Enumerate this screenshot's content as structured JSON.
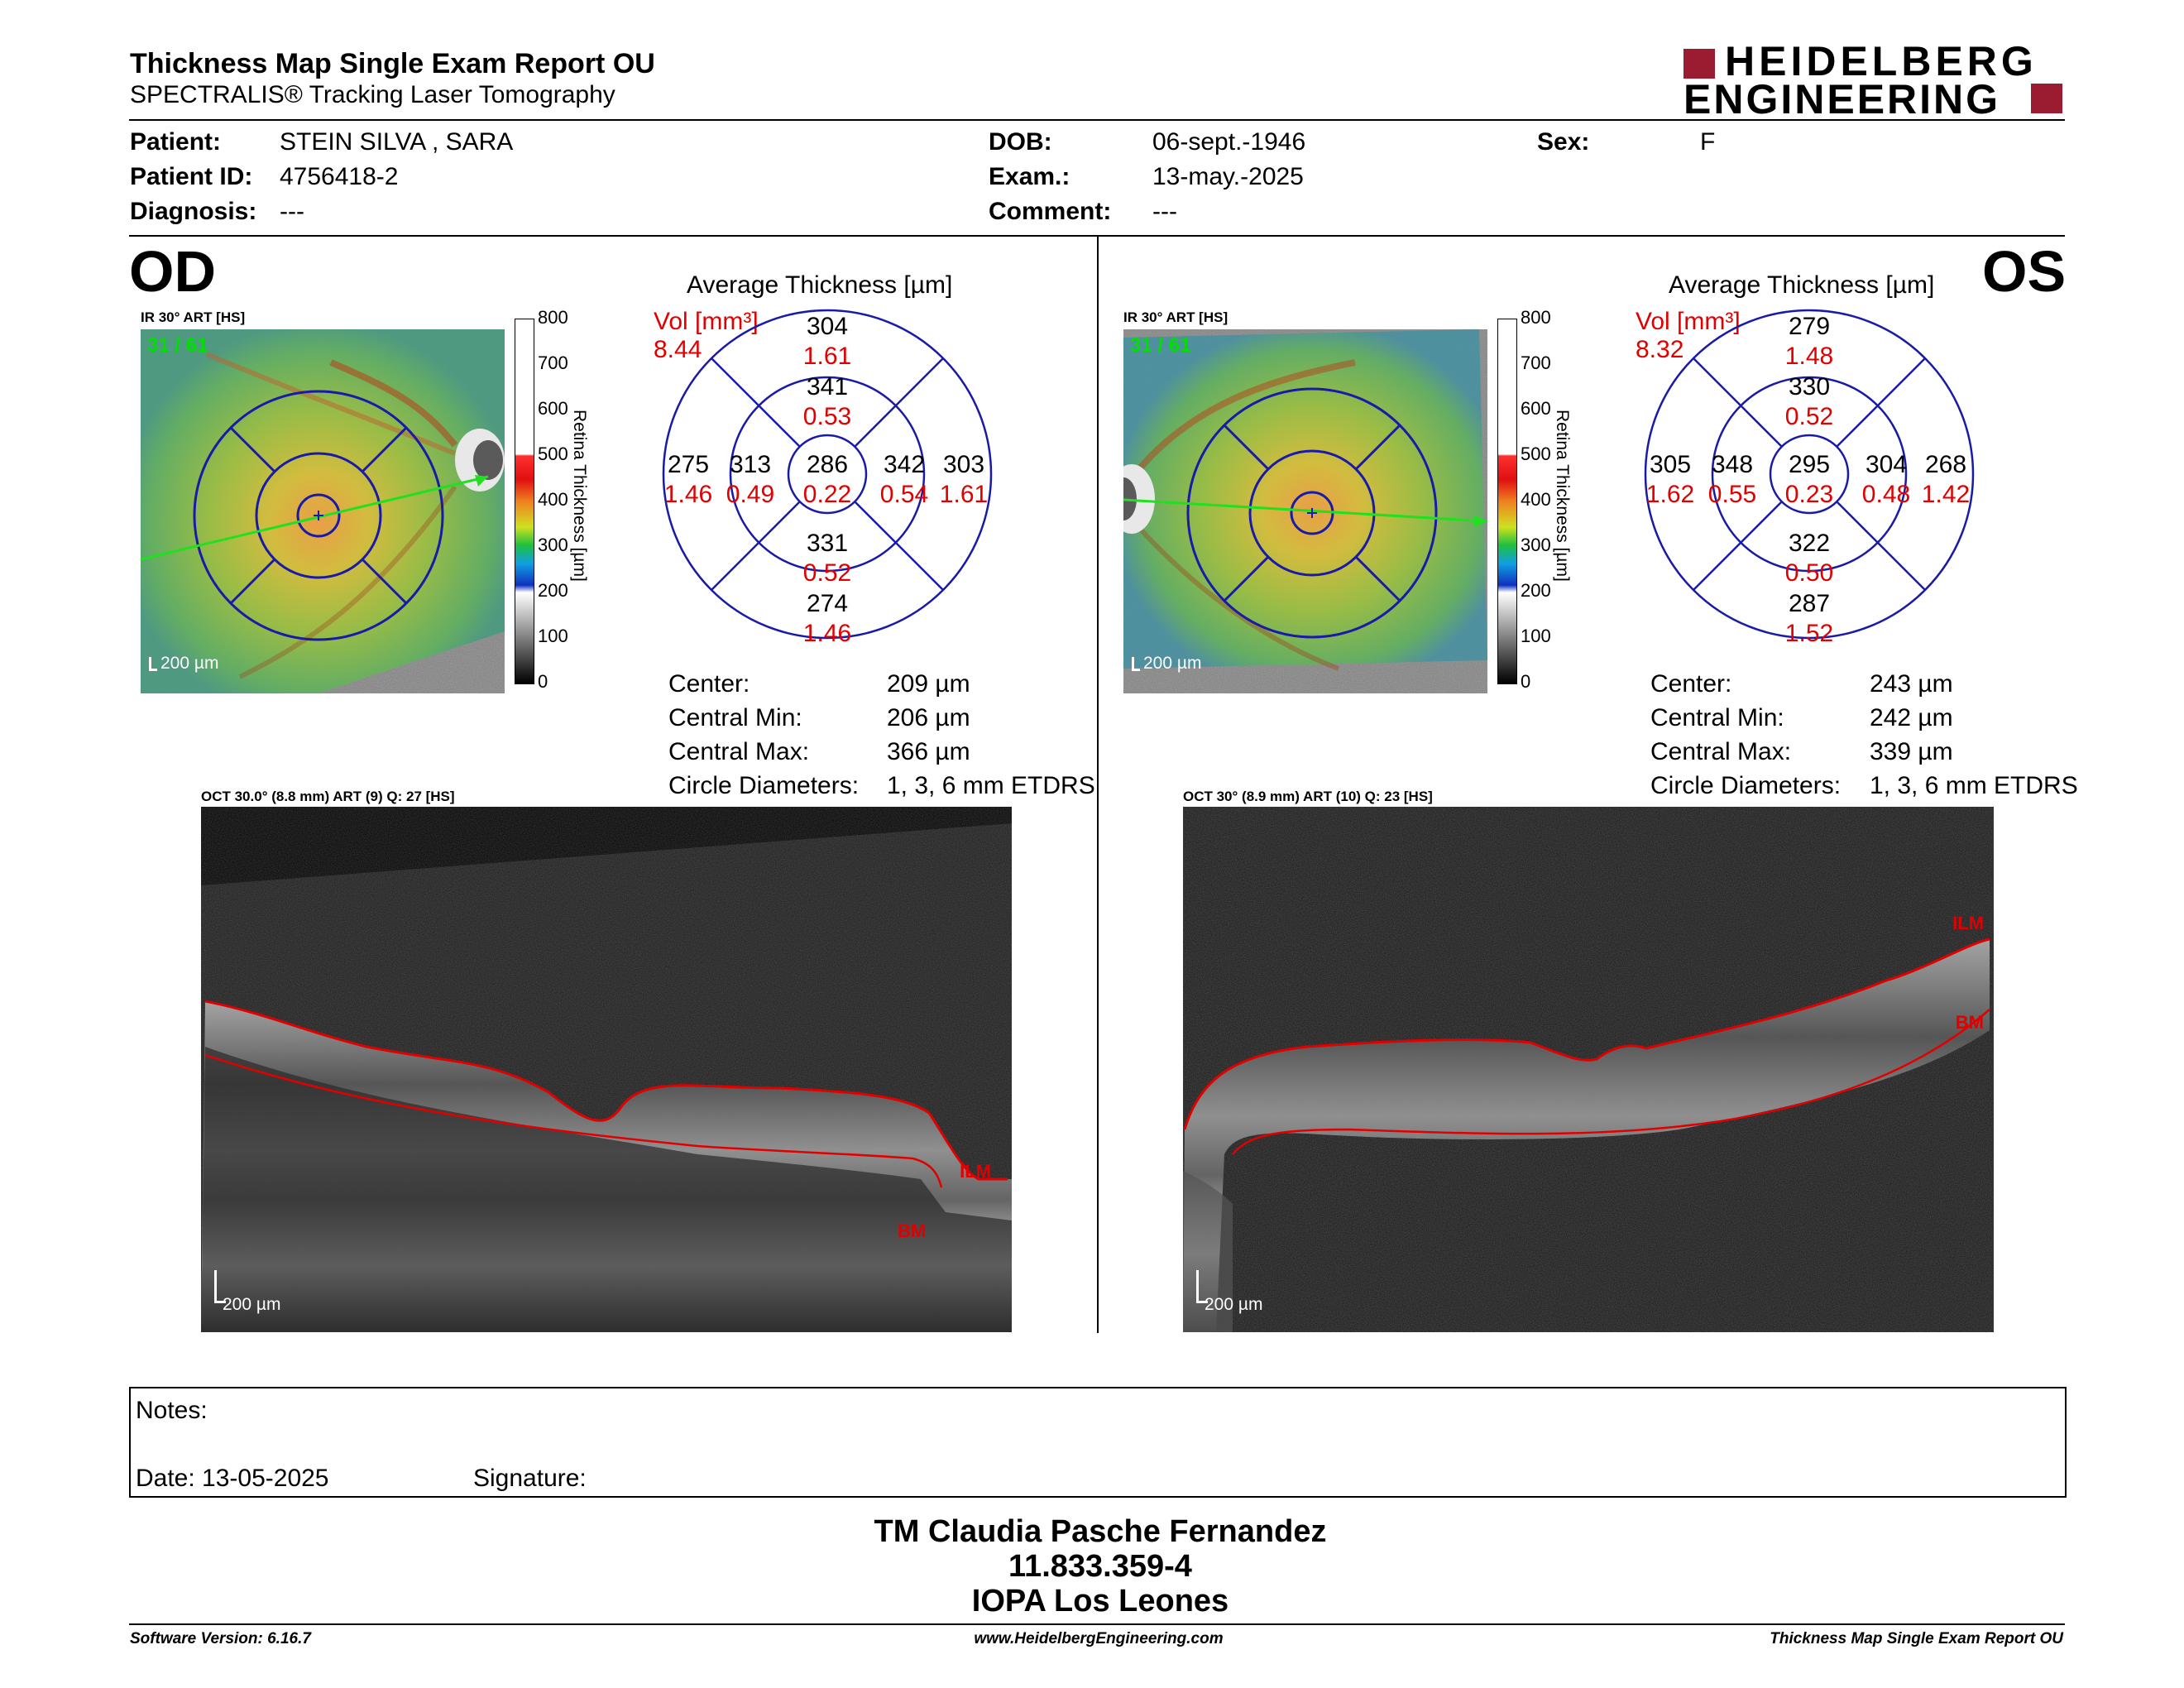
{
  "header": {
    "title": "Thickness Map Single Exam Report OU",
    "subtitle": "SPECTRALIS® Tracking Laser Tomography",
    "logo_line1": "HEIDELBERG",
    "logo_line2": "ENGINEERING"
  },
  "patient": {
    "patient_label": "Patient:",
    "patient_value": "STEIN SILVA , SARA",
    "id_label": "Patient ID:",
    "id_value": "4756418-2",
    "diag_label": "Diagnosis:",
    "diag_value": "---",
    "dob_label": "DOB:",
    "dob_value": "06-sept.-1946",
    "exam_label": "Exam.:",
    "exam_value": "13-may.-2025",
    "comment_label": "Comment:",
    "comment_value": "---",
    "sex_label": "Sex:",
    "sex_value": "F"
  },
  "colorbar": {
    "ticks": [
      "800",
      "700",
      "600",
      "500",
      "400",
      "300",
      "200",
      "100",
      "0"
    ],
    "title": "Retina Thickness [µm]"
  },
  "od": {
    "eye": "OD",
    "ir_label": "IR 30° ART [HS]",
    "frame": "31 / 61",
    "ir_scale": "200 µm",
    "avg_title": "Average Thickness [µm]",
    "vol_label": "Vol [mm³]",
    "vol_value": "8.44",
    "etdrs": {
      "sup_outer": "304",
      "sup_outer_vol": "1.61",
      "sup_inner": "341",
      "sup_inner_vol": "0.53",
      "temp_outer": "275",
      "temp_outer_vol": "1.46",
      "temp_inner": "313",
      "temp_inner_vol": "0.49",
      "center": "286",
      "center_vol": "0.22",
      "nas_inner": "342",
      "nas_inner_vol": "0.54",
      "nas_outer": "303",
      "nas_outer_vol": "1.61",
      "inf_inner": "331",
      "inf_inner_vol": "0.52",
      "inf_outer": "274",
      "inf_outer_vol": "1.46"
    },
    "stats": {
      "center_label": "Center:",
      "center_value": "209 µm",
      "min_label": "Central Min:",
      "min_value": "206 µm",
      "max_label": "Central Max:",
      "max_value": "366 µm",
      "diam_label": "Circle Diameters:",
      "diam_value": "1, 3, 6 mm ETDRS"
    },
    "oct_label": "OCT 30.0° (8.8 mm) ART (9) Q: 27 [HS]",
    "oct_scale": "200 µm",
    "ilm": "ILM",
    "bm": "BM"
  },
  "os": {
    "eye": "OS",
    "ir_label": "IR 30° ART [HS]",
    "frame": "31 / 61",
    "ir_scale": "200 µm",
    "avg_title": "Average Thickness [µm]",
    "vol_label": "Vol [mm³]",
    "vol_value": "8.32",
    "etdrs": {
      "sup_outer": "279",
      "sup_outer_vol": "1.48",
      "sup_inner": "330",
      "sup_inner_vol": "0.52",
      "temp_outer": "305",
      "temp_outer_vol": "1.62",
      "temp_inner": "348",
      "temp_inner_vol": "0.55",
      "center": "295",
      "center_vol": "0.23",
      "nas_inner": "304",
      "nas_inner_vol": "0.48",
      "nas_outer": "268",
      "nas_outer_vol": "1.42",
      "inf_inner": "322",
      "inf_inner_vol": "0.50",
      "inf_outer": "287",
      "inf_outer_vol": "1.52"
    },
    "stats": {
      "center_label": "Center:",
      "center_value": "243 µm",
      "min_label": "Central Min:",
      "min_value": "242 µm",
      "max_label": "Central Max:",
      "max_value": "339 µm",
      "diam_label": "Circle Diameters:",
      "diam_value": "1, 3, 6 mm ETDRS"
    },
    "oct_label": "OCT 30° (8.9 mm) ART (10) Q: 23 [HS]",
    "oct_scale": "200 µm",
    "ilm": "ILM",
    "bm": "BM"
  },
  "notes": {
    "notes_label": "Notes:",
    "date_label": "Date: 13-05-2025",
    "signature_label": "Signature:"
  },
  "signoff": {
    "line1": "TM Claudia Pasche Fernandez",
    "line2": "11.833.359-4",
    "line3": "IOPA Los Leones"
  },
  "footer": {
    "software": "Software Version: 6.16.7",
    "website": "www.HeidelbergEngineering.com",
    "report": "Thickness Map Single Exam Report OU"
  },
  "colors": {
    "grid_blue": "#1a1aa8",
    "vol_red": "#e00000",
    "logo_red": "#9b1b30",
    "ilm_red": "#e00000",
    "frame_green": "#00e000"
  }
}
